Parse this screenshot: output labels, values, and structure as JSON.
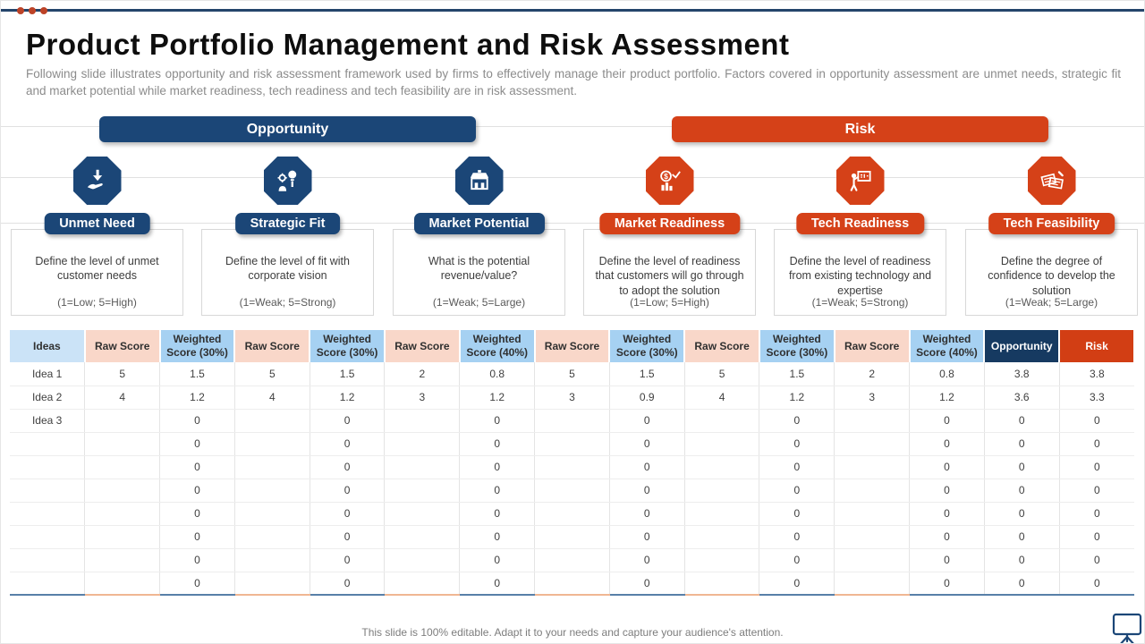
{
  "header": {
    "title": "Product Portfolio Management and Risk Assessment",
    "subtitle": "Following slide illustrates opportunity and risk assessment framework used by firms to effectively manage their product portfolio. Factors covered in opportunity assessment are unmet needs, strategic fit and market potential while market readiness, tech readiness and tech feasibility are in risk assessment."
  },
  "banners": {
    "opportunity": "Opportunity",
    "risk": "Risk"
  },
  "factors": [
    {
      "group": "opportunity",
      "icon": "hand-receiving-arrow-icon",
      "title": "Unmet Need",
      "description": "Define the level of unmet customer needs",
      "scale": "(1=Low; 5=High)"
    },
    {
      "group": "opportunity",
      "icon": "innovation-mind-icon",
      "title": "Strategic Fit",
      "description": "Define the level of fit with corporate vision",
      "scale": "(1=Weak; 5=Strong)"
    },
    {
      "group": "opportunity",
      "icon": "storefront-icon",
      "title": "Market Potential",
      "description": "What is the potential revenue/value?",
      "scale": "(1=Weak; 5=Large)"
    },
    {
      "group": "risk",
      "icon": "global-market-analytics-icon",
      "title": "Market Readiness",
      "description": "Define the level of readiness that customers will go through to adopt the solution",
      "scale": "(1=Low; 5=High)"
    },
    {
      "group": "risk",
      "icon": "presenter-whiteboard-icon",
      "title": "Tech Readiness",
      "description": "Define the level of readiness from existing technology and expertise",
      "scale": "(1=Weak; 5=Strong)"
    },
    {
      "group": "risk",
      "icon": "notes-pencil-icon",
      "title": "Tech Feasibility",
      "description": "Define the degree of confidence to develop the solution",
      "scale": "(1=Weak; 5=Large)"
    }
  ],
  "table": {
    "columns": [
      "Ideas",
      "Raw Score",
      "Weighted Score (30%)",
      "Raw Score",
      "Weighted Score (30%)",
      "Raw Score",
      "Weighted Score (40%)",
      "Raw Score",
      "Weighted Score (30%)",
      "Raw Score",
      "Weighted Score (30%)",
      "Raw Score",
      "Weighted Score (40%)",
      "Opportunity",
      "Risk"
    ],
    "column_types": [
      "ideas",
      "raw",
      "weighted",
      "raw",
      "weighted",
      "raw",
      "weighted",
      "raw",
      "weighted",
      "raw",
      "weighted",
      "raw",
      "weighted",
      "opportunity",
      "risk"
    ],
    "rows": [
      [
        "Idea 1",
        "5",
        "1.5",
        "5",
        "1.5",
        "2",
        "0.8",
        "5",
        "1.5",
        "5",
        "1.5",
        "2",
        "0.8",
        "3.8",
        "3.8"
      ],
      [
        "Idea 2",
        "4",
        "1.2",
        "4",
        "1.2",
        "3",
        "1.2",
        "3",
        "0.9",
        "4",
        "1.2",
        "3",
        "1.2",
        "3.6",
        "3.3"
      ],
      [
        "Idea 3",
        "",
        "0",
        "",
        "0",
        "",
        "0",
        "",
        "0",
        "",
        "0",
        "",
        "0",
        "0",
        "0"
      ],
      [
        "",
        "",
        "0",
        "",
        "0",
        "",
        "0",
        "",
        "0",
        "",
        "0",
        "",
        "0",
        "0",
        "0"
      ],
      [
        "",
        "",
        "0",
        "",
        "0",
        "",
        "0",
        "",
        "0",
        "",
        "0",
        "",
        "0",
        "0",
        "0"
      ],
      [
        "",
        "",
        "0",
        "",
        "0",
        "",
        "0",
        "",
        "0",
        "",
        "0",
        "",
        "0",
        "0",
        "0"
      ],
      [
        "",
        "",
        "0",
        "",
        "0",
        "",
        "0",
        "",
        "0",
        "",
        "0",
        "",
        "0",
        "0",
        "0"
      ],
      [
        "",
        "",
        "0",
        "",
        "0",
        "",
        "0",
        "",
        "0",
        "",
        "0",
        "",
        "0",
        "0",
        "0"
      ],
      [
        "",
        "",
        "0",
        "",
        "0",
        "",
        "0",
        "",
        "0",
        "",
        "0",
        "",
        "0",
        "0",
        "0"
      ],
      [
        "",
        "",
        "0",
        "",
        "0",
        "",
        "0",
        "",
        "0",
        "",
        "0",
        "",
        "0",
        "0",
        "0"
      ]
    ]
  },
  "footer": {
    "note": "This slide is 100% editable. Adapt it to your needs and capture your audience's attention."
  },
  "colors": {
    "navy": "#1B4677",
    "red": "#D54118",
    "table_header_navy": "#163A61",
    "table_header_red": "#D23E14",
    "header_blue": "#A6D1F2",
    "header_light_blue": "#CBE3F7",
    "header_pink": "#F9D7C9",
    "accent_dot": "#BD4327",
    "top_rule": "#24456B"
  }
}
